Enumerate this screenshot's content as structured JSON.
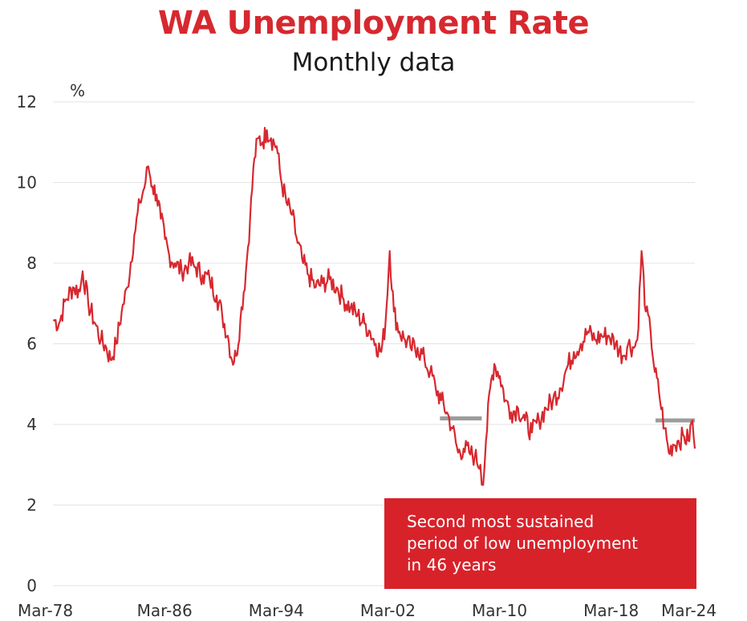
{
  "chart_data": {
    "type": "line",
    "title": "WA Unemployment Rate",
    "subtitle": "Monthly data",
    "ylabel": "%",
    "ylim": [
      0,
      12
    ],
    "yticks": [
      0,
      2,
      4,
      6,
      8,
      10,
      12
    ],
    "xlim": [
      1978.17,
      2024.17
    ],
    "xticks": [
      {
        "label": "Mar-78",
        "x": 1978.17
      },
      {
        "label": "Mar-86",
        "x": 1986.17
      },
      {
        "label": "Mar-94",
        "x": 1994.17
      },
      {
        "label": "Mar-02",
        "x": 2002.17
      },
      {
        "label": "Mar-10",
        "x": 2010.17
      },
      {
        "label": "Mar-18",
        "x": 2018.17
      },
      {
        "label": "Mar-24",
        "x": 2024.17
      }
    ],
    "grid": true,
    "line_color": "#d7282f",
    "series": [
      {
        "points": [
          [
            1978.2,
            6.6
          ],
          [
            1978.6,
            6.5
          ],
          [
            1979.1,
            7.1
          ],
          [
            1979.6,
            7.4
          ],
          [
            1980.1,
            7.3
          ],
          [
            1980.3,
            7.8
          ],
          [
            1980.7,
            7.0
          ],
          [
            1981.2,
            6.5
          ],
          [
            1981.6,
            6.1
          ],
          [
            1982.0,
            5.9
          ],
          [
            1982.3,
            5.6
          ],
          [
            1982.7,
            6.0
          ],
          [
            1983.1,
            6.8
          ],
          [
            1983.5,
            7.4
          ],
          [
            1984.0,
            8.7
          ],
          [
            1984.4,
            9.5
          ],
          [
            1984.8,
            10.0
          ],
          [
            1985.0,
            10.4
          ],
          [
            1985.3,
            9.9
          ],
          [
            1985.6,
            9.7
          ],
          [
            1985.9,
            9.1
          ],
          [
            1986.2,
            8.6
          ],
          [
            1986.5,
            8.2
          ],
          [
            1986.9,
            8.0
          ],
          [
            1987.4,
            7.8
          ],
          [
            1987.9,
            8.0
          ],
          [
            1988.4,
            7.9
          ],
          [
            1988.9,
            7.7
          ],
          [
            1989.4,
            7.6
          ],
          [
            1989.9,
            7.2
          ],
          [
            1990.3,
            6.7
          ],
          [
            1990.7,
            6.2
          ],
          [
            1991.0,
            5.6
          ],
          [
            1991.3,
            5.7
          ],
          [
            1991.6,
            6.6
          ],
          [
            1992.0,
            7.8
          ],
          [
            1992.3,
            9.1
          ],
          [
            1992.6,
            10.6
          ],
          [
            1992.9,
            11.1
          ],
          [
            1993.2,
            11.0
          ],
          [
            1993.5,
            11.3
          ],
          [
            1993.8,
            11.1
          ],
          [
            1994.2,
            10.9
          ],
          [
            1994.5,
            10.1
          ],
          [
            1994.9,
            9.5
          ],
          [
            1995.3,
            9.2
          ],
          [
            1995.7,
            8.5
          ],
          [
            1996.1,
            8.0
          ],
          [
            1996.5,
            7.7
          ],
          [
            1997.0,
            7.4
          ],
          [
            1997.5,
            7.5
          ],
          [
            1998.0,
            7.6
          ],
          [
            1998.5,
            7.4
          ],
          [
            1999.0,
            7.1
          ],
          [
            1999.5,
            6.9
          ],
          [
            2000.0,
            6.7
          ],
          [
            2000.5,
            6.5
          ],
          [
            2000.9,
            6.3
          ],
          [
            2001.3,
            6.0
          ],
          [
            2001.7,
            5.8
          ],
          [
            2002.0,
            6.5
          ],
          [
            2002.3,
            8.3
          ],
          [
            2002.6,
            6.8
          ],
          [
            2003.0,
            6.3
          ],
          [
            2003.4,
            6.1
          ],
          [
            2003.8,
            5.9
          ],
          [
            2004.3,
            5.9
          ],
          [
            2004.8,
            5.6
          ],
          [
            2005.2,
            5.3
          ],
          [
            2005.6,
            4.9
          ],
          [
            2006.0,
            4.6
          ],
          [
            2006.4,
            4.3
          ],
          [
            2006.8,
            3.9
          ],
          [
            2007.2,
            3.3
          ],
          [
            2007.6,
            3.4
          ],
          [
            2008.0,
            3.3
          ],
          [
            2008.4,
            3.2
          ],
          [
            2008.8,
            3.0
          ],
          [
            2009.0,
            2.5
          ],
          [
            2009.2,
            3.6
          ],
          [
            2009.5,
            4.9
          ],
          [
            2009.8,
            5.5
          ],
          [
            2010.2,
            5.2
          ],
          [
            2010.6,
            4.6
          ],
          [
            2011.0,
            4.3
          ],
          [
            2011.5,
            4.4
          ],
          [
            2012.0,
            4.1
          ],
          [
            2012.5,
            3.8
          ],
          [
            2013.0,
            4.1
          ],
          [
            2013.5,
            4.4
          ],
          [
            2014.0,
            4.6
          ],
          [
            2014.5,
            4.9
          ],
          [
            2015.0,
            5.4
          ],
          [
            2015.5,
            5.8
          ],
          [
            2016.0,
            6.0
          ],
          [
            2016.5,
            6.3
          ],
          [
            2017.0,
            6.1
          ],
          [
            2017.5,
            6.2
          ],
          [
            2018.0,
            6.2
          ],
          [
            2018.5,
            6.0
          ],
          [
            2019.0,
            5.7
          ],
          [
            2019.4,
            6.0
          ],
          [
            2019.8,
            5.9
          ],
          [
            2020.05,
            6.1
          ],
          [
            2020.35,
            8.3
          ],
          [
            2020.65,
            6.8
          ],
          [
            2021.0,
            6.3
          ],
          [
            2021.3,
            5.3
          ],
          [
            2021.6,
            4.8
          ],
          [
            2022.0,
            3.9
          ],
          [
            2022.3,
            3.3
          ],
          [
            2022.6,
            3.5
          ],
          [
            2023.0,
            3.6
          ],
          [
            2023.4,
            3.7
          ],
          [
            2023.7,
            3.6
          ],
          [
            2024.0,
            4.1
          ],
          [
            2024.17,
            3.4
          ]
        ]
      }
    ],
    "reference_lines": [
      {
        "y": 4.15,
        "x_start": 2005.9,
        "x_end": 2008.9,
        "color": "#9c9c9c"
      },
      {
        "y": 4.1,
        "x_start": 2021.35,
        "x_end": 2024.17,
        "color": "#9c9c9c"
      }
    ],
    "annotation": {
      "lines": [
        "Second most sustained",
        "period of low unemployment",
        "in 46 years"
      ],
      "background": "#d8222a",
      "text_color": "#ffffff"
    }
  }
}
